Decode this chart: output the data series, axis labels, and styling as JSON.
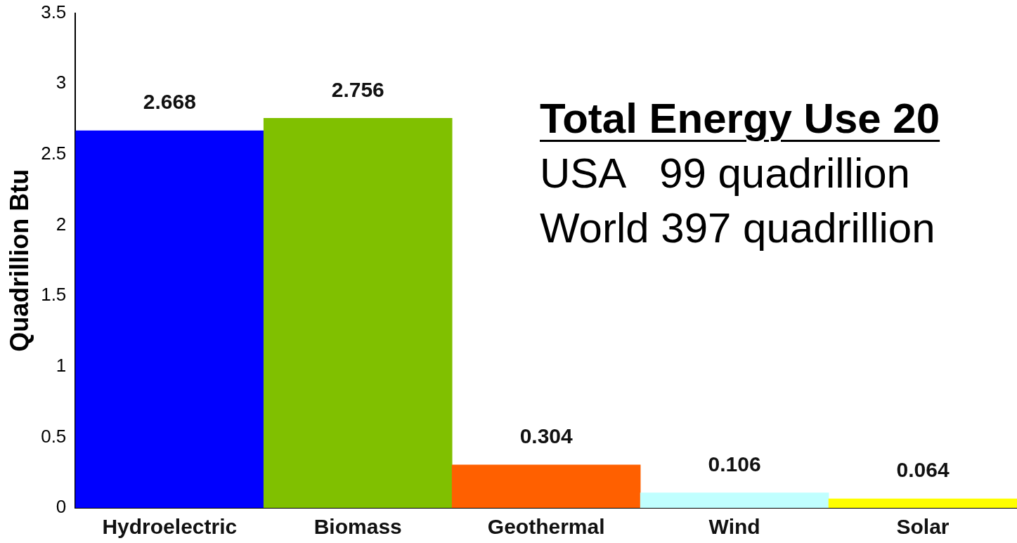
{
  "chart_data": {
    "type": "bar",
    "ylabel": "Quadrillion Btu",
    "categories": [
      "Hydroelectric",
      "Biomass",
      "Geothermal",
      "Wind",
      "Solar"
    ],
    "values": [
      2.668,
      2.756,
      0.304,
      0.106,
      0.064
    ],
    "colors": [
      "#0000ff",
      "#80c000",
      "#ff6000",
      "#c0ffff",
      "#ffff00"
    ],
    "ylim": [
      0,
      3.5
    ],
    "yticks": [
      0,
      0.5,
      1,
      1.5,
      2,
      2.5,
      3,
      3.5
    ],
    "grid": false,
    "legend": false,
    "data_labels": true,
    "annotations": [
      "Total Energy Use 20",
      "USA   99 quadrillion",
      "World 397 quadrillion"
    ]
  }
}
